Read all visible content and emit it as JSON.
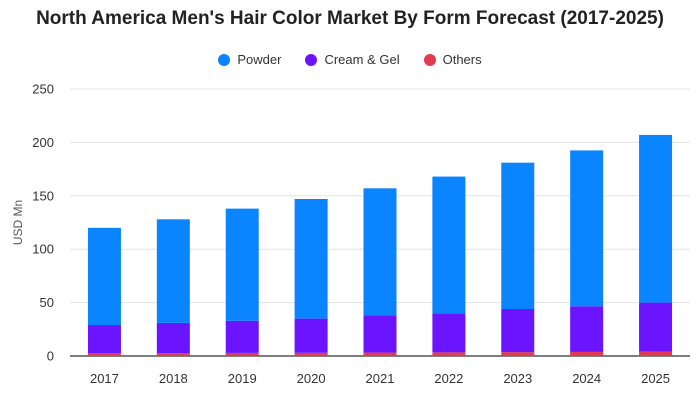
{
  "chart_data": {
    "type": "bar",
    "stacked": true,
    "title": "North America Men's Hair Color Market By Form Forecast (2017-2025)",
    "xlabel": "",
    "ylabel": "USD Mn",
    "ylim": [
      0,
      250
    ],
    "yticks": [
      "0",
      "50",
      "100",
      "150",
      "200",
      "250"
    ],
    "grid": true,
    "legend_position": "top-center",
    "categories": [
      "2017",
      "2018",
      "2019",
      "2020",
      "2021",
      "2022",
      "2023",
      "2024",
      "2025"
    ],
    "series": [
      {
        "name": "Others",
        "color": "#e23b4e",
        "values": [
          2.5,
          2.7,
          2.9,
          3.0,
          3.2,
          3.4,
          3.6,
          3.8,
          4.0
        ]
      },
      {
        "name": "Cream & Gel",
        "color": "#6a14ff",
        "values": [
          26.5,
          28.3,
          30.1,
          32.0,
          34.8,
          36.6,
          40.4,
          42.7,
          46.0
        ]
      },
      {
        "name": "Powder",
        "color": "#0b84ff",
        "values": [
          91.0,
          97.0,
          105.0,
          112.0,
          119.0,
          128.0,
          137.0,
          146.0,
          157.0
        ]
      }
    ],
    "legend_order": [
      "Powder",
      "Cream & Gel",
      "Others"
    ]
  }
}
